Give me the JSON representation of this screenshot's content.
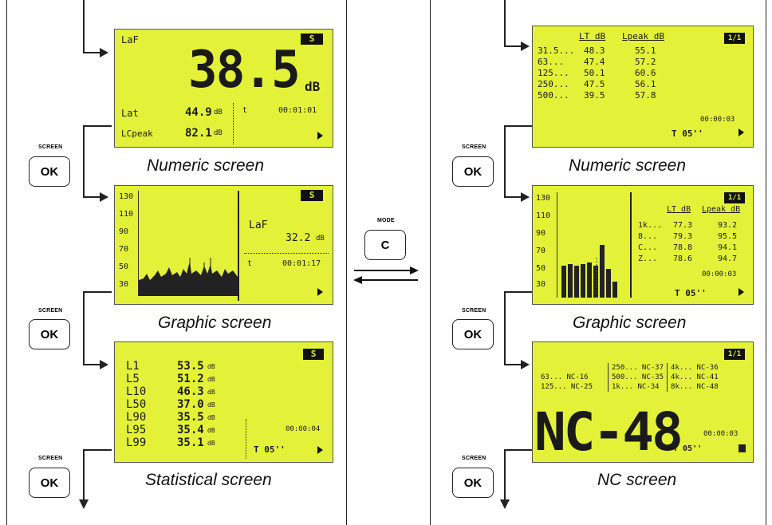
{
  "buttons": {
    "screen_label": "SCREEN",
    "ok_label": "OK",
    "mode_label": "MODE",
    "c_label": "C"
  },
  "left": {
    "numeric": {
      "caption": "Numeric screen",
      "badge": "S",
      "main_label": "LaF",
      "main_value": "38.5",
      "main_unit": "dB",
      "row1_label": "Lat",
      "row1_value": "44.9",
      "row1_unit": "dB",
      "row2_label": "LCpeak",
      "row2_value": "82.1",
      "row2_unit": "dB",
      "t_label": "t",
      "time": "00:01:01"
    },
    "graphic": {
      "caption": "Graphic screen",
      "badge": "S",
      "y_ticks": [
        "130",
        "110",
        "90",
        "70",
        "50",
        "30"
      ],
      "label": "LaF",
      "value": "32.2",
      "unit": "dB",
      "t_label": "t",
      "time": "00:01:17"
    },
    "statistical": {
      "caption": "Statistical screen",
      "badge": "S",
      "rows": [
        {
          "label": "L1",
          "value": "53.5",
          "unit": "dB"
        },
        {
          "label": "L5",
          "value": "51.2",
          "unit": "dB"
        },
        {
          "label": "L10",
          "value": "46.3",
          "unit": "dB"
        },
        {
          "label": "L50",
          "value": "37.0",
          "unit": "dB"
        },
        {
          "label": "L90",
          "value": "35.5",
          "unit": "dB"
        },
        {
          "label": "L95",
          "value": "35.4",
          "unit": "dB"
        },
        {
          "label": "L99",
          "value": "35.1",
          "unit": "dB"
        }
      ],
      "time": "00:00:04",
      "period": "T 05''"
    }
  },
  "right": {
    "numeric": {
      "caption": "Numeric screen",
      "badge": "1/1",
      "col1": "LT dB",
      "col2": "Lpeak dB",
      "rows": [
        {
          "band": "31.5...",
          "lt": "48.3",
          "peak": "55.1"
        },
        {
          "band": "63...",
          "lt": "47.4",
          "peak": "57.2"
        },
        {
          "band": "125...",
          "lt": "50.1",
          "peak": "60.6"
        },
        {
          "band": "250...",
          "lt": "47.5",
          "peak": "56.1"
        },
        {
          "band": "500...",
          "lt": "39.5",
          "peak": "57.8"
        }
      ],
      "time": "00:00:03",
      "period": "T 05''"
    },
    "graphic": {
      "caption": "Graphic screen",
      "badge": "1/1",
      "y_ticks": [
        "130",
        "110",
        "90",
        "70",
        "50",
        "30"
      ],
      "col1": "LT dB",
      "col2": "Lpeak dB",
      "rows": [
        {
          "band": "1k...",
          "lt": "77.3",
          "peak": "93.2"
        },
        {
          "band": "8...",
          "lt": "79.3",
          "peak": "95.5"
        },
        {
          "band": "C...",
          "lt": "78.8",
          "peak": "94.1"
        },
        {
          "band": "Z...",
          "lt": "78.6",
          "peak": "94.7"
        }
      ],
      "time": "00:00:03",
      "period": "T 05''"
    },
    "nc": {
      "caption": "NC screen",
      "badge": "1/1",
      "table": [
        [
          "",
          "250... NC-37",
          "4k... NC-36"
        ],
        [
          "63... NC-16",
          "500... NC-35",
          "4k... NC-41"
        ],
        [
          "125... NC-25",
          "1k... NC-34",
          "8k... NC-48"
        ]
      ],
      "big_value": "NC-48",
      "period": "T 05''",
      "time": "00:00:03"
    }
  }
}
